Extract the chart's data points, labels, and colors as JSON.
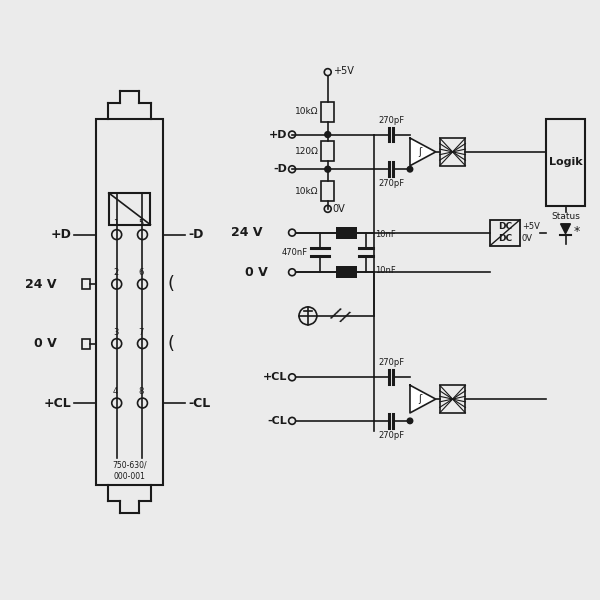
{
  "bg_color": "#ebebeb",
  "line_color": "#1a1a1a",
  "labels": {
    "plus_D": "+D",
    "minus_D": "-D",
    "v24": "24 V",
    "v0": "0 V",
    "plus_CL": "+CL",
    "minus_CL": "-CL",
    "r1": "10kΩ",
    "r2": "120Ω",
    "r3": "10kΩ",
    "c1": "270pF",
    "c2": "270pF",
    "c3": "270pF",
    "c4": "270pF",
    "c5": "470nF",
    "c6": "10nF",
    "c7": "10nF",
    "v5t": "+5V",
    "v0b": "0V",
    "v5dc": "+5V",
    "v0dc": "0V",
    "logik": "Logik",
    "status": "Status",
    "part_num": "750-630/\n000-001"
  }
}
